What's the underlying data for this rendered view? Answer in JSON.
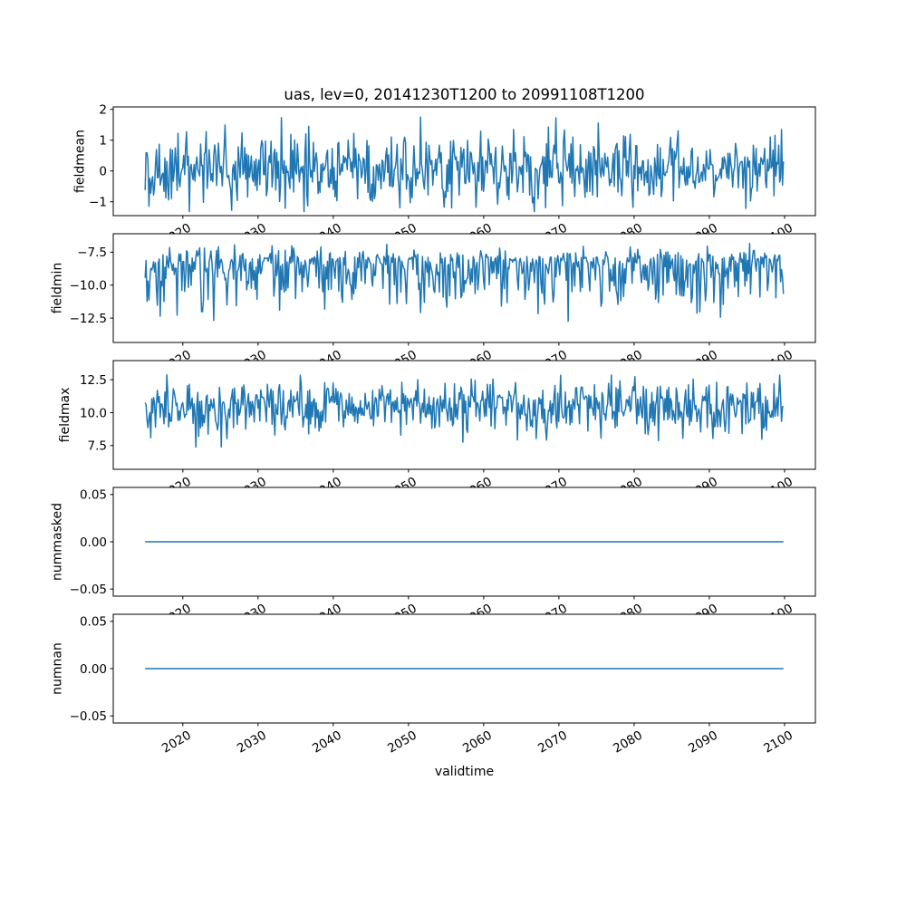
{
  "chart_data": {
    "type": "line",
    "title": "uas, lev=0, 20141230T1200 to 20991108T1200",
    "xlabel": "validtime",
    "line_color": "#1f77b4",
    "axis_color": "#000000",
    "background_color": "#ffffff",
    "grid": false,
    "legend": false,
    "x": {
      "start": 2014.99,
      "end": 2099.85,
      "xlim": [
        2010.75,
        2104.1
      ],
      "tick_values": [
        2020,
        2030,
        2040,
        2050,
        2060,
        2070,
        2080,
        2090,
        2100
      ],
      "tick_labels": [
        "2020",
        "2030",
        "2040",
        "2050",
        "2060",
        "2070",
        "2080",
        "2090",
        "2100"
      ],
      "tick_rotation_deg": 30
    },
    "subplots": [
      {
        "id": "fieldmean",
        "ylabel": "fieldmean",
        "ylim": [
          -1.45,
          2.08
        ],
        "ytick_values": [
          -1,
          0,
          1,
          2
        ],
        "ytick_labels": [
          "−1",
          "0",
          "1",
          "2"
        ],
        "line": {
          "kind": "noise",
          "seed": 12,
          "n": 680,
          "mean": 0.13,
          "std": 0.56,
          "skew_up": 1.0,
          "skew_down": 1.0,
          "clip_min": -1.32,
          "clip_max": 1.93
        }
      },
      {
        "id": "fieldmin",
        "ylabel": "fieldmin",
        "ylim": [
          -14.35,
          -6.1
        ],
        "ytick_values": [
          -12.5,
          -10.0,
          -7.5
        ],
        "ytick_labels": [
          "−12.5",
          "−10.0",
          "−7.5"
        ],
        "line": {
          "kind": "noise",
          "seed": 77,
          "n": 680,
          "mean": -8.45,
          "std": 1.05,
          "skew_up": 0.55,
          "skew_down": 1.65,
          "clip_min": -13.85,
          "clip_max": -6.45
        }
      },
      {
        "id": "fieldmax",
        "ylabel": "fieldmax",
        "ylim": [
          5.7,
          13.95
        ],
        "ytick_values": [
          7.5,
          10.0,
          12.5
        ],
        "ytick_labels": [
          "7.5",
          "10.0",
          "12.5"
        ],
        "line": {
          "kind": "noise",
          "seed": 101,
          "n": 680,
          "mean": 10.55,
          "std": 1.05,
          "skew_up": 0.85,
          "skew_down": 1.1,
          "clip_min": 6.25,
          "clip_max": 13.6
        }
      },
      {
        "id": "nummasked",
        "ylabel": "nummasked",
        "ylim": [
          -0.0575,
          0.0575
        ],
        "ytick_values": [
          -0.05,
          0.0,
          0.05
        ],
        "ytick_labels": [
          "−0.05",
          "0.00",
          "0.05"
        ],
        "line": {
          "kind": "constant",
          "value": 0.0
        }
      },
      {
        "id": "numnan",
        "ylabel": "numnan",
        "ylim": [
          -0.0575,
          0.0575
        ],
        "ytick_values": [
          -0.05,
          0.0,
          0.05
        ],
        "ytick_labels": [
          "−0.05",
          "0.00",
          "0.05"
        ],
        "line": {
          "kind": "constant",
          "value": 0.0
        }
      }
    ]
  }
}
